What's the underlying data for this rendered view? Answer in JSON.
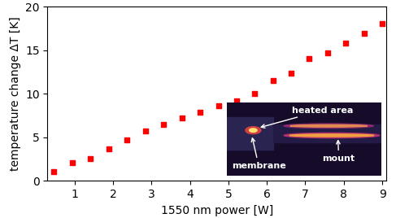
{
  "chart_data": {
    "type": "scatter",
    "x_label": "1550 nm power [W]",
    "y_label": "temperature change ΔT [K]",
    "x": [
      0.47,
      0.95,
      1.42,
      1.89,
      2.37,
      2.84,
      3.32,
      3.79,
      4.26,
      4.74,
      5.21,
      5.68,
      6.16,
      6.63,
      7.1,
      7.58,
      8.05,
      8.53,
      9.0
    ],
    "values": [
      1.1,
      2.1,
      2.6,
      3.7,
      4.7,
      5.7,
      6.5,
      7.2,
      7.9,
      8.6,
      9.2,
      10.0,
      11.5,
      12.4,
      14.0,
      14.7,
      15.8,
      16.9,
      18.0
    ],
    "color": "#ff0000",
    "marker": "square",
    "xlim": [
      0.3,
      9.1
    ],
    "xticks": [
      1,
      2,
      3,
      4,
      5,
      6,
      7,
      8,
      9
    ],
    "ylim": [
      0,
      20
    ],
    "yticks": [
      0,
      5,
      10,
      15,
      20
    ],
    "grid": false,
    "annotations": [
      "heated area",
      "membrane",
      "mount"
    ]
  }
}
